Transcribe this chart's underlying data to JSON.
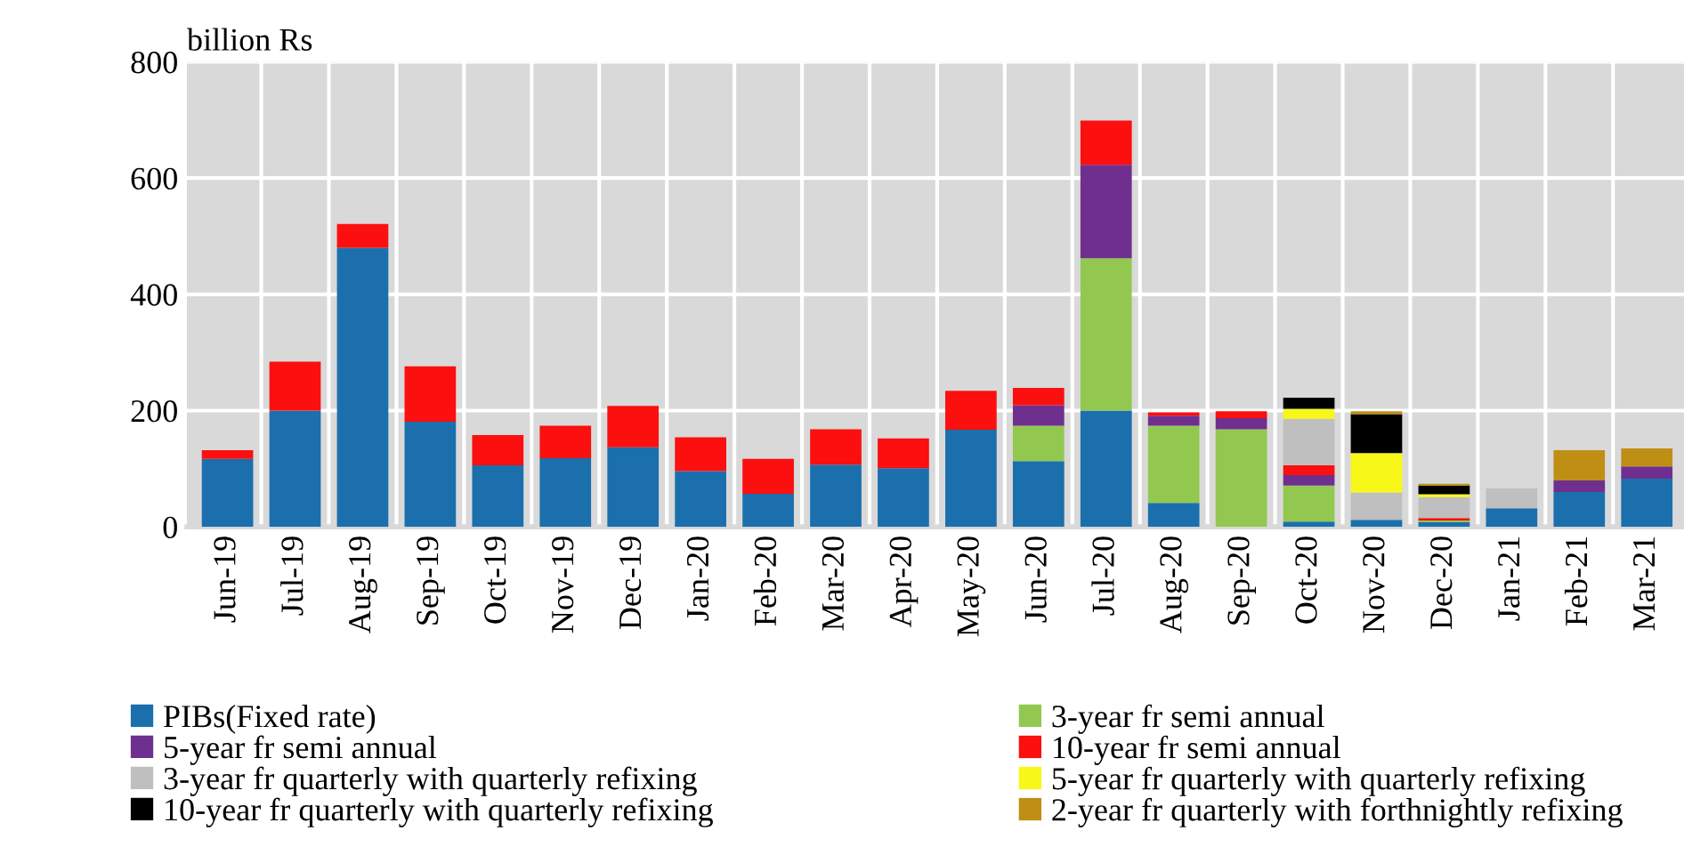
{
  "chart_data": {
    "type": "bar",
    "stacked": true,
    "ylabel": "billion Rs",
    "categories": [
      "Jun-19",
      "Jul-19",
      "Aug-19",
      "Sep-19",
      "Oct-19",
      "Nov-19",
      "Dec-19",
      "Jan-20",
      "Feb-20",
      "Mar-20",
      "Apr-20",
      "May-20",
      "Jun-20",
      "Jul-20",
      "Aug-20",
      "Sep-20",
      "Oct-20",
      "Nov-20",
      "Dec-20",
      "Jan-21",
      "Feb-21",
      "Mar-21"
    ],
    "series": [
      {
        "name": "PIBs(Fixed rate)",
        "color": "#1b6fad",
        "values": [
          117,
          200,
          480,
          181,
          106,
          118,
          137,
          96,
          57,
          107,
          101,
          167,
          113,
          200,
          41,
          0,
          9,
          12,
          8,
          32,
          60,
          83
        ]
      },
      {
        "name": "3-year fr semi annual",
        "color": "#92c850",
        "values": [
          0,
          0,
          0,
          0,
          0,
          0,
          0,
          0,
          0,
          0,
          0,
          0,
          61,
          262,
          133,
          168,
          62,
          0,
          3,
          0,
          0,
          0
        ]
      },
      {
        "name": "5-year fr semi annual",
        "color": "#6f2f8f",
        "values": [
          0,
          0,
          0,
          0,
          0,
          0,
          0,
          0,
          0,
          0,
          0,
          0,
          35,
          161,
          17,
          19,
          18,
          0,
          0,
          0,
          20,
          21
        ]
      },
      {
        "name": "10-year fr semi annual",
        "color": "#fb0f0f",
        "values": [
          15,
          84,
          41,
          95,
          52,
          56,
          71,
          58,
          60,
          61,
          51,
          67,
          30,
          76,
          6,
          12,
          17,
          0,
          4,
          0,
          0,
          0
        ]
      },
      {
        "name": "3-year fr quarterly with quarterly refixing",
        "color": "#bfbfbf",
        "values": [
          0,
          0,
          0,
          0,
          0,
          0,
          0,
          0,
          0,
          0,
          0,
          0,
          0,
          0,
          0,
          0,
          80,
          47,
          36,
          34,
          0,
          0
        ]
      },
      {
        "name": "5-year fr quarterly with quarterly refixing",
        "color": "#f7f719",
        "values": [
          0,
          0,
          0,
          0,
          0,
          0,
          0,
          0,
          0,
          0,
          0,
          0,
          0,
          0,
          0,
          0,
          17,
          68,
          5,
          0,
          0,
          0
        ]
      },
      {
        "name": "10-year fr quarterly with quarterly refixing",
        "color": "#000000",
        "values": [
          0,
          0,
          0,
          0,
          0,
          0,
          0,
          0,
          0,
          0,
          0,
          0,
          0,
          0,
          0,
          0,
          19,
          67,
          15,
          0,
          0,
          0
        ]
      },
      {
        "name": "2-year fr quarterly with forthnightly refixing",
        "color": "#bf8f15",
        "values": [
          0,
          0,
          0,
          0,
          0,
          0,
          0,
          0,
          0,
          0,
          0,
          0,
          0,
          0,
          0,
          0,
          0,
          5,
          3,
          0,
          52,
          31
        ]
      }
    ],
    "ylim": [
      0,
      800
    ],
    "yticks": [
      0,
      200,
      400,
      600,
      800
    ],
    "grid": true,
    "legend": "bottom"
  }
}
